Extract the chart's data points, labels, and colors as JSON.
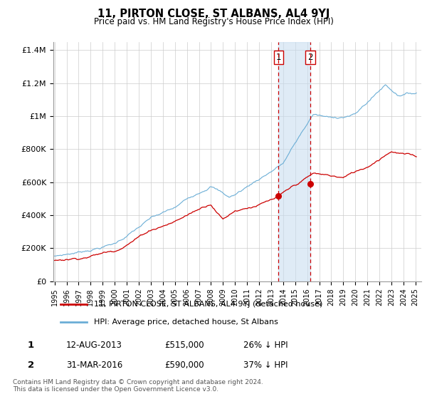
{
  "title": "11, PIRTON CLOSE, ST ALBANS, AL4 9YJ",
  "subtitle": "Price paid vs. HM Land Registry's House Price Index (HPI)",
  "ylabel_ticks": [
    "£0",
    "£200K",
    "£400K",
    "£600K",
    "£800K",
    "£1M",
    "£1.2M",
    "£1.4M"
  ],
  "ytick_values": [
    0,
    200000,
    400000,
    600000,
    800000,
    1000000,
    1200000,
    1400000
  ],
  "ylim": [
    0,
    1450000
  ],
  "xlim_start": 1994.9,
  "xlim_end": 2025.5,
  "hpi_color": "#6baed6",
  "price_color": "#cc0000",
  "transaction1_date": 2013.617,
  "transaction1_price": 515000,
  "transaction2_date": 2016.247,
  "transaction2_price": 590000,
  "legend_line1": "11, PIRTON CLOSE, ST ALBANS, AL4 9YJ (detached house)",
  "legend_line2": "HPI: Average price, detached house, St Albans",
  "annot1_date": "12-AUG-2013",
  "annot1_price": "£515,000",
  "annot1_hpi": "26% ↓ HPI",
  "annot2_date": "31-MAR-2016",
  "annot2_price": "£590,000",
  "annot2_hpi": "37% ↓ HPI",
  "footer": "Contains HM Land Registry data © Crown copyright and database right 2024.\nThis data is licensed under the Open Government Licence v3.0.",
  "background_color": "#ffffff",
  "grid_color": "#cccccc"
}
